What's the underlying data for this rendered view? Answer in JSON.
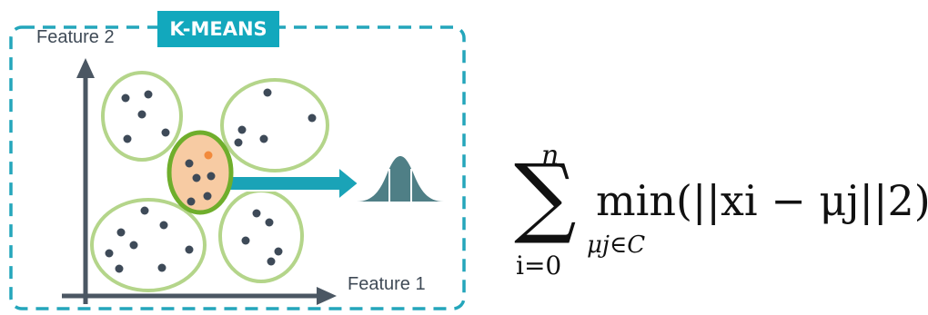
{
  "title_badge": "K-MEANS",
  "axes": {
    "y_label": "Feature 2",
    "x_label": "Feature 1"
  },
  "colors": {
    "frame": "#24a6bb",
    "badge": "#12a8bd",
    "axis": "#4b5763",
    "cluster_stroke": "#b4d58a",
    "highlight_stroke": "#6fae2c",
    "highlight_fill": "#f7cba3",
    "point": "#3e4a58",
    "centroid": "#f28a3c",
    "arrow": "#1aa3b7",
    "distribution": "#4f7f86"
  },
  "icons": [
    "right-arrow-icon",
    "bell-curve-icon"
  ],
  "formula": {
    "sum_upper": "n",
    "sum_lower": "i=0",
    "min_word": "min",
    "min_subscript": "μj∈C",
    "expression": "(||xi − μj||2)"
  }
}
